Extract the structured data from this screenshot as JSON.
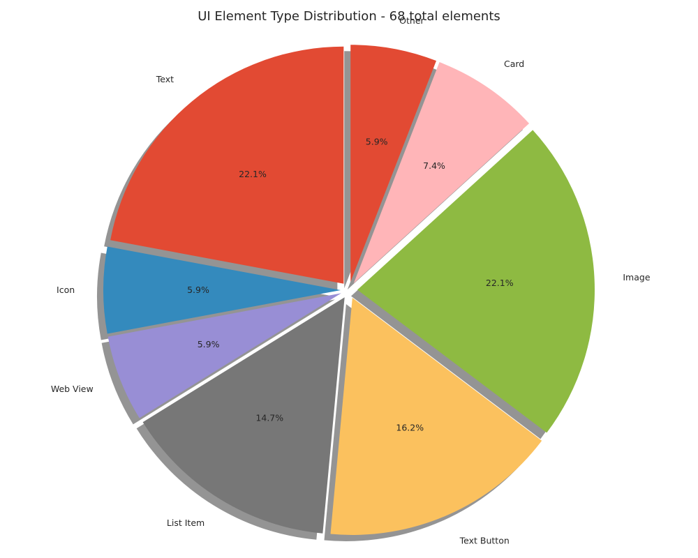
{
  "chart_data": {
    "type": "pie",
    "title": "UI Element Type Distribution - 68 total elements",
    "total": 68,
    "start_angle_deg": 90,
    "direction": "counterclockwise",
    "shadow": true,
    "exploded": true,
    "slices": [
      {
        "label": "Text",
        "count": 15,
        "percent": "22.1%",
        "color": "#E24A33"
      },
      {
        "label": "Icon",
        "count": 4,
        "percent": "5.9%",
        "color": "#348ABD"
      },
      {
        "label": "Web View",
        "count": 4,
        "percent": "5.9%",
        "color": "#988ED5"
      },
      {
        "label": "List Item",
        "count": 10,
        "percent": "14.7%",
        "color": "#777777"
      },
      {
        "label": "Text Button",
        "count": 11,
        "percent": "16.2%",
        "color": "#FBC15E"
      },
      {
        "label": "Image",
        "count": 15,
        "percent": "22.1%",
        "color": "#8EBA42"
      },
      {
        "label": "Card",
        "count": 5,
        "percent": "7.4%",
        "color": "#FFB5B8"
      },
      {
        "label": "Other",
        "count": 4,
        "percent": "5.9%",
        "color": "#E24A33"
      }
    ]
  }
}
